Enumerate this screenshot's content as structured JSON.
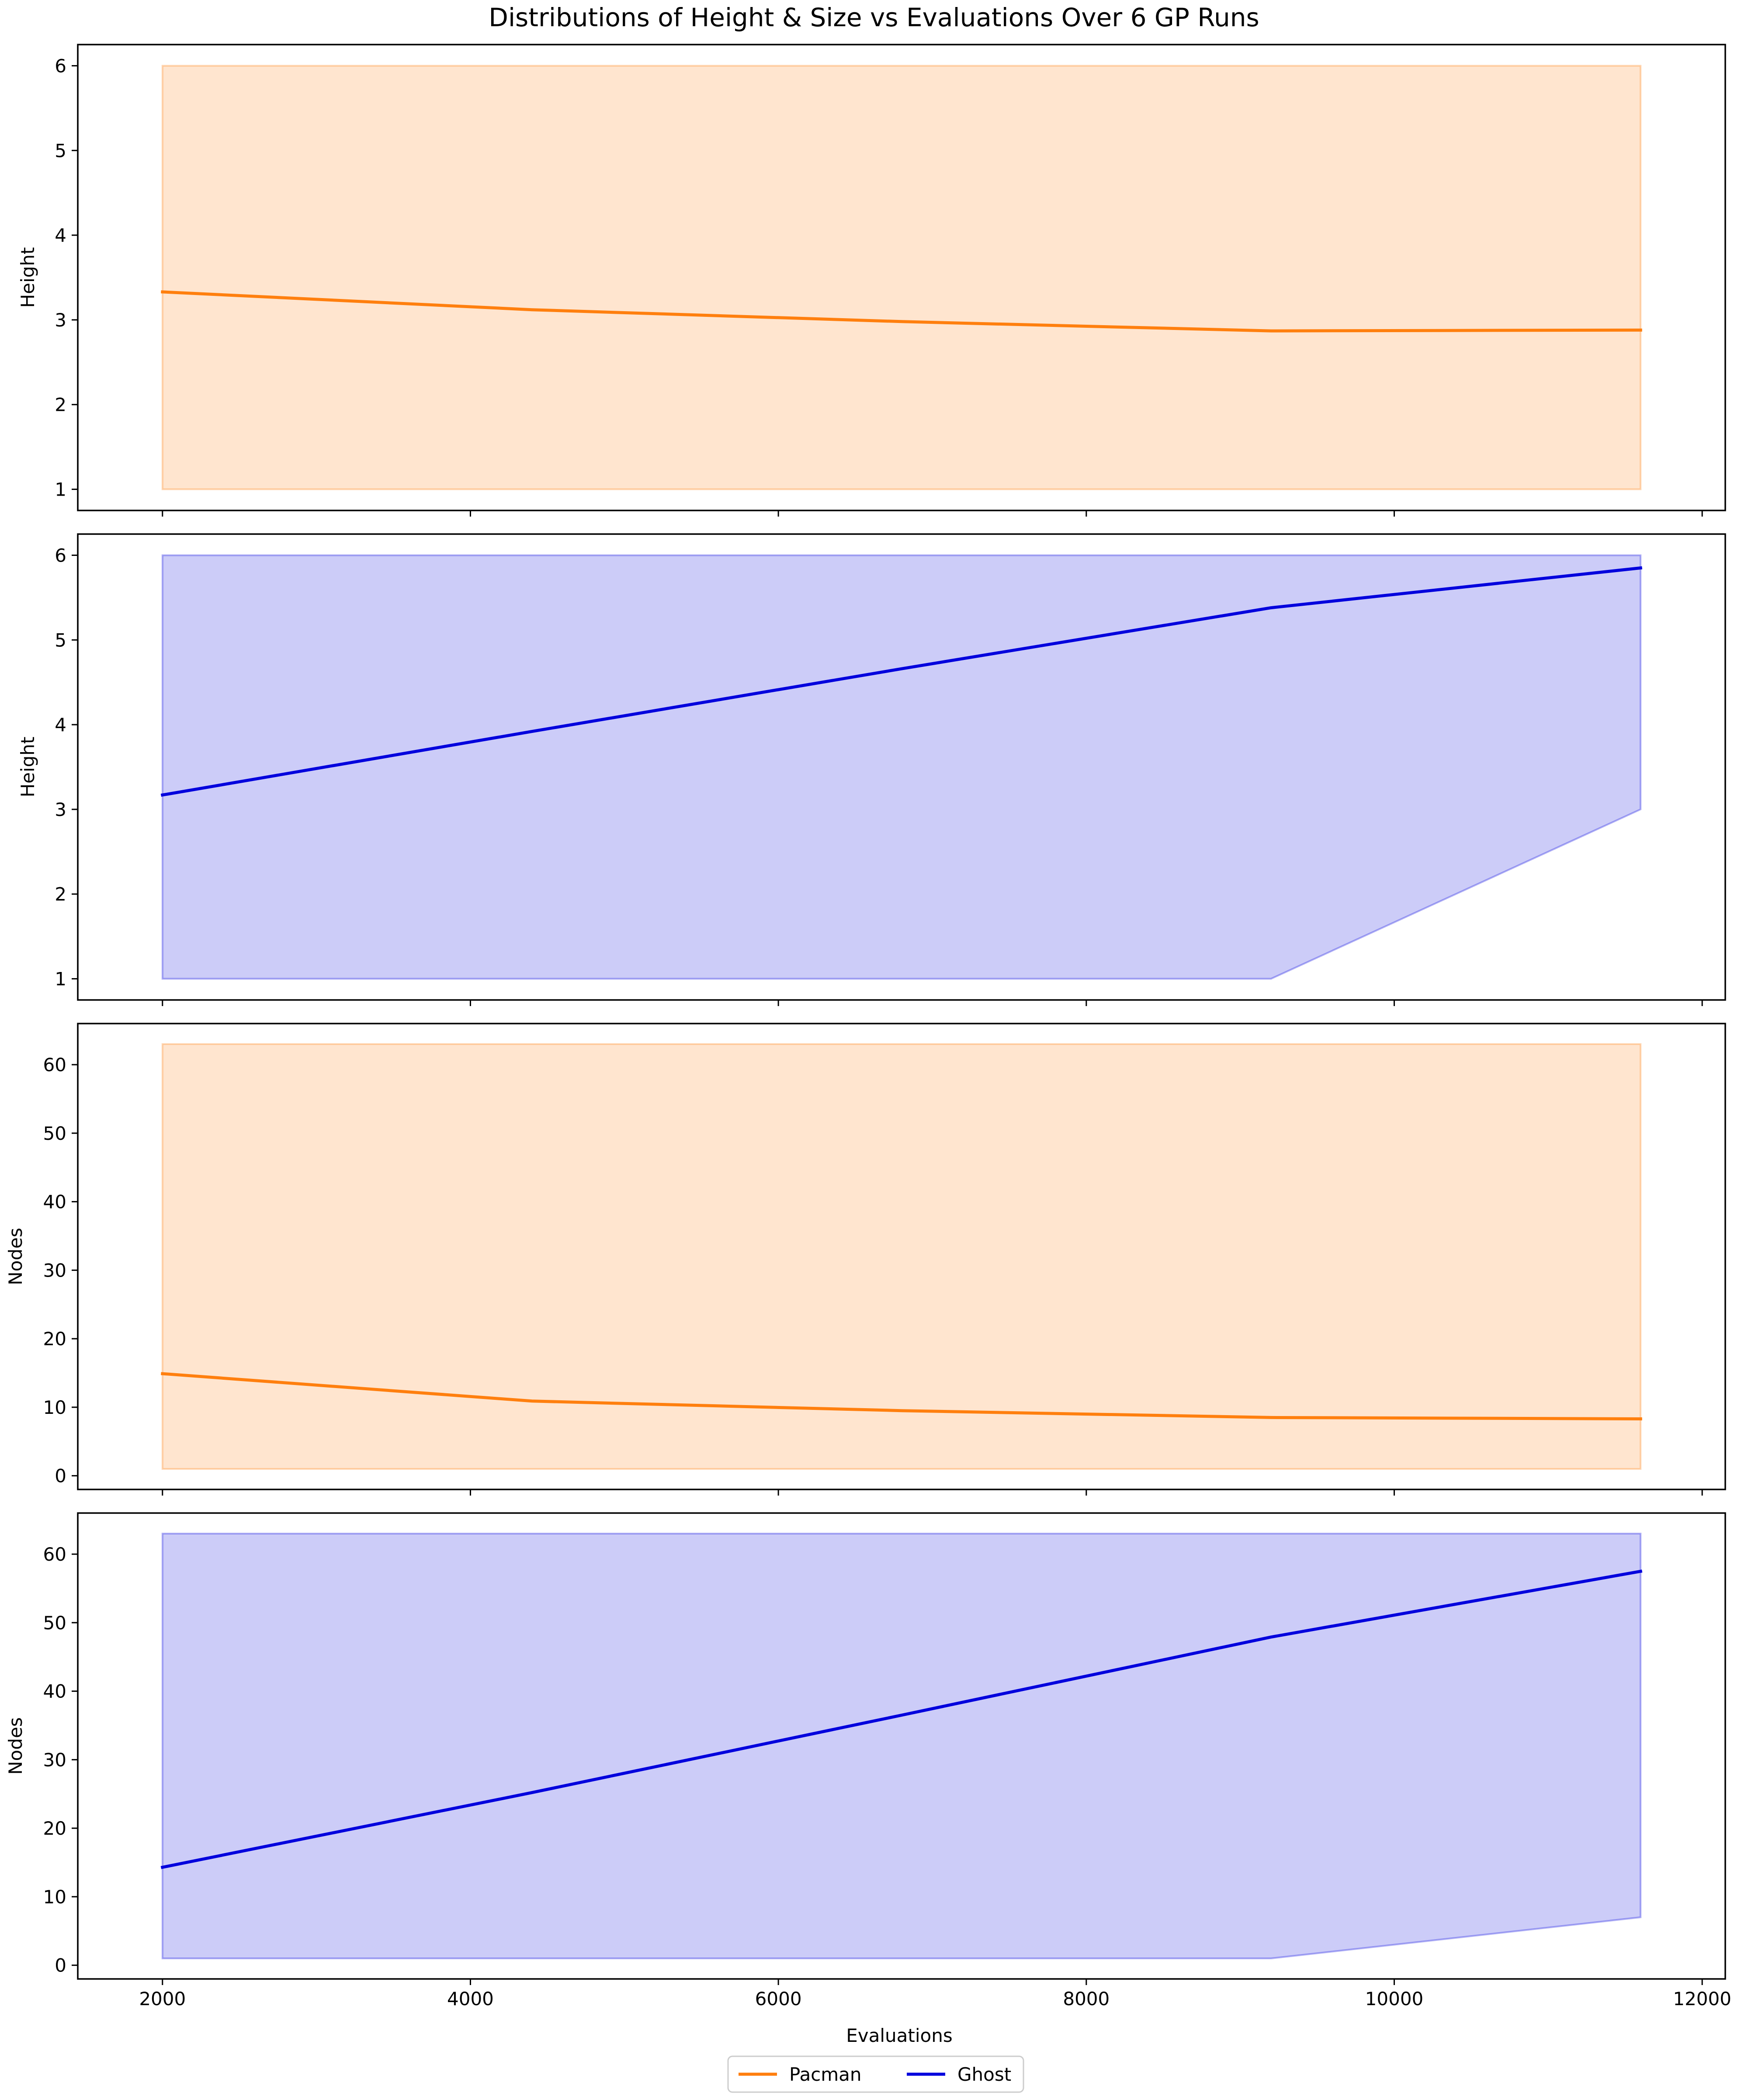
{
  "chart_data": {
    "type": "line",
    "title": "Distributions of Height & Size vs Evaluations Over 6 GP Runs",
    "xlabel": "Evaluations",
    "xlim": [
      1450,
      12150
    ],
    "xticks": [
      2000,
      4000,
      6000,
      8000,
      10000,
      12000
    ],
    "x": [
      2000,
      4400,
      6800,
      9200,
      11600
    ],
    "legend": {
      "placement": "bottom-center",
      "entries": [
        {
          "label": "Pacman",
          "color": "#ff7f0e"
        },
        {
          "label": "Ghost",
          "color": "#0000dd"
        }
      ]
    },
    "subplots": [
      {
        "ylabel": "Height",
        "ylim": [
          0.75,
          6.25
        ],
        "yticks": [
          1,
          2,
          3,
          4,
          5,
          6
        ],
        "series": [
          {
            "name": "Pacman",
            "color": "#ff7f0e",
            "mean": [
              3.33,
              3.12,
              2.98,
              2.87,
              2.88
            ],
            "min": [
              1,
              1,
              1,
              1,
              1
            ],
            "max": [
              6,
              6,
              6,
              6,
              6
            ]
          }
        ]
      },
      {
        "ylabel": "Height",
        "ylim": [
          0.75,
          6.25
        ],
        "yticks": [
          1,
          2,
          3,
          4,
          5,
          6
        ],
        "series": [
          {
            "name": "Ghost",
            "color": "#0000dd",
            "mean": [
              3.17,
              3.92,
              4.66,
              5.38,
              5.85
            ],
            "min": [
              1,
              1,
              1,
              1,
              3
            ],
            "max": [
              6,
              6,
              6,
              6,
              6
            ]
          }
        ]
      },
      {
        "ylabel": "Nodes",
        "ylim": [
          -2,
          66
        ],
        "yticks": [
          0,
          10,
          20,
          30,
          40,
          50,
          60
        ],
        "series": [
          {
            "name": "Pacman",
            "color": "#ff7f0e",
            "mean": [
              14.9,
              10.9,
              9.5,
              8.5,
              8.3
            ],
            "min": [
              1,
              1,
              1,
              1,
              1
            ],
            "max": [
              63,
              63,
              63,
              63,
              63
            ]
          }
        ]
      },
      {
        "ylabel": "Nodes",
        "ylim": [
          -2,
          66
        ],
        "yticks": [
          0,
          10,
          20,
          30,
          40,
          50,
          60
        ],
        "series": [
          {
            "name": "Ghost",
            "color": "#0000dd",
            "mean": [
              14.3,
              25.2,
              36.5,
              47.9,
              57.5
            ],
            "min": [
              1,
              1,
              1,
              1,
              7
            ],
            "max": [
              63,
              63,
              63,
              63,
              63
            ]
          }
        ]
      }
    ]
  }
}
